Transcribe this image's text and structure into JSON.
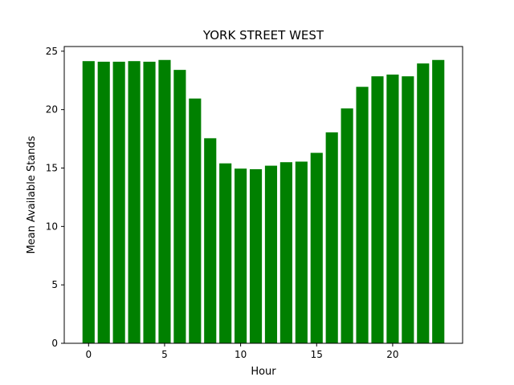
{
  "chart_data": {
    "type": "bar",
    "title": "YORK STREET WEST",
    "xlabel": "Hour",
    "ylabel": "Mean Available Stands",
    "x": [
      0,
      1,
      2,
      3,
      4,
      5,
      6,
      7,
      8,
      9,
      10,
      11,
      12,
      13,
      14,
      15,
      16,
      17,
      18,
      19,
      20,
      21,
      22,
      23
    ],
    "values": [
      24.15,
      24.1,
      24.1,
      24.15,
      24.1,
      24.25,
      23.4,
      20.95,
      17.55,
      15.4,
      14.95,
      14.9,
      15.2,
      15.5,
      15.55,
      16.3,
      18.05,
      20.1,
      21.95,
      22.85,
      23.0,
      22.85,
      23.95,
      24.25
    ],
    "xlim": [
      -1.6,
      24.6
    ],
    "ylim": [
      0,
      25.4
    ],
    "xticks": [
      0,
      5,
      10,
      15,
      20
    ],
    "yticks": [
      0,
      5,
      10,
      15,
      20,
      25
    ],
    "bar_color": "#008000",
    "grid": false,
    "legend": "none"
  }
}
